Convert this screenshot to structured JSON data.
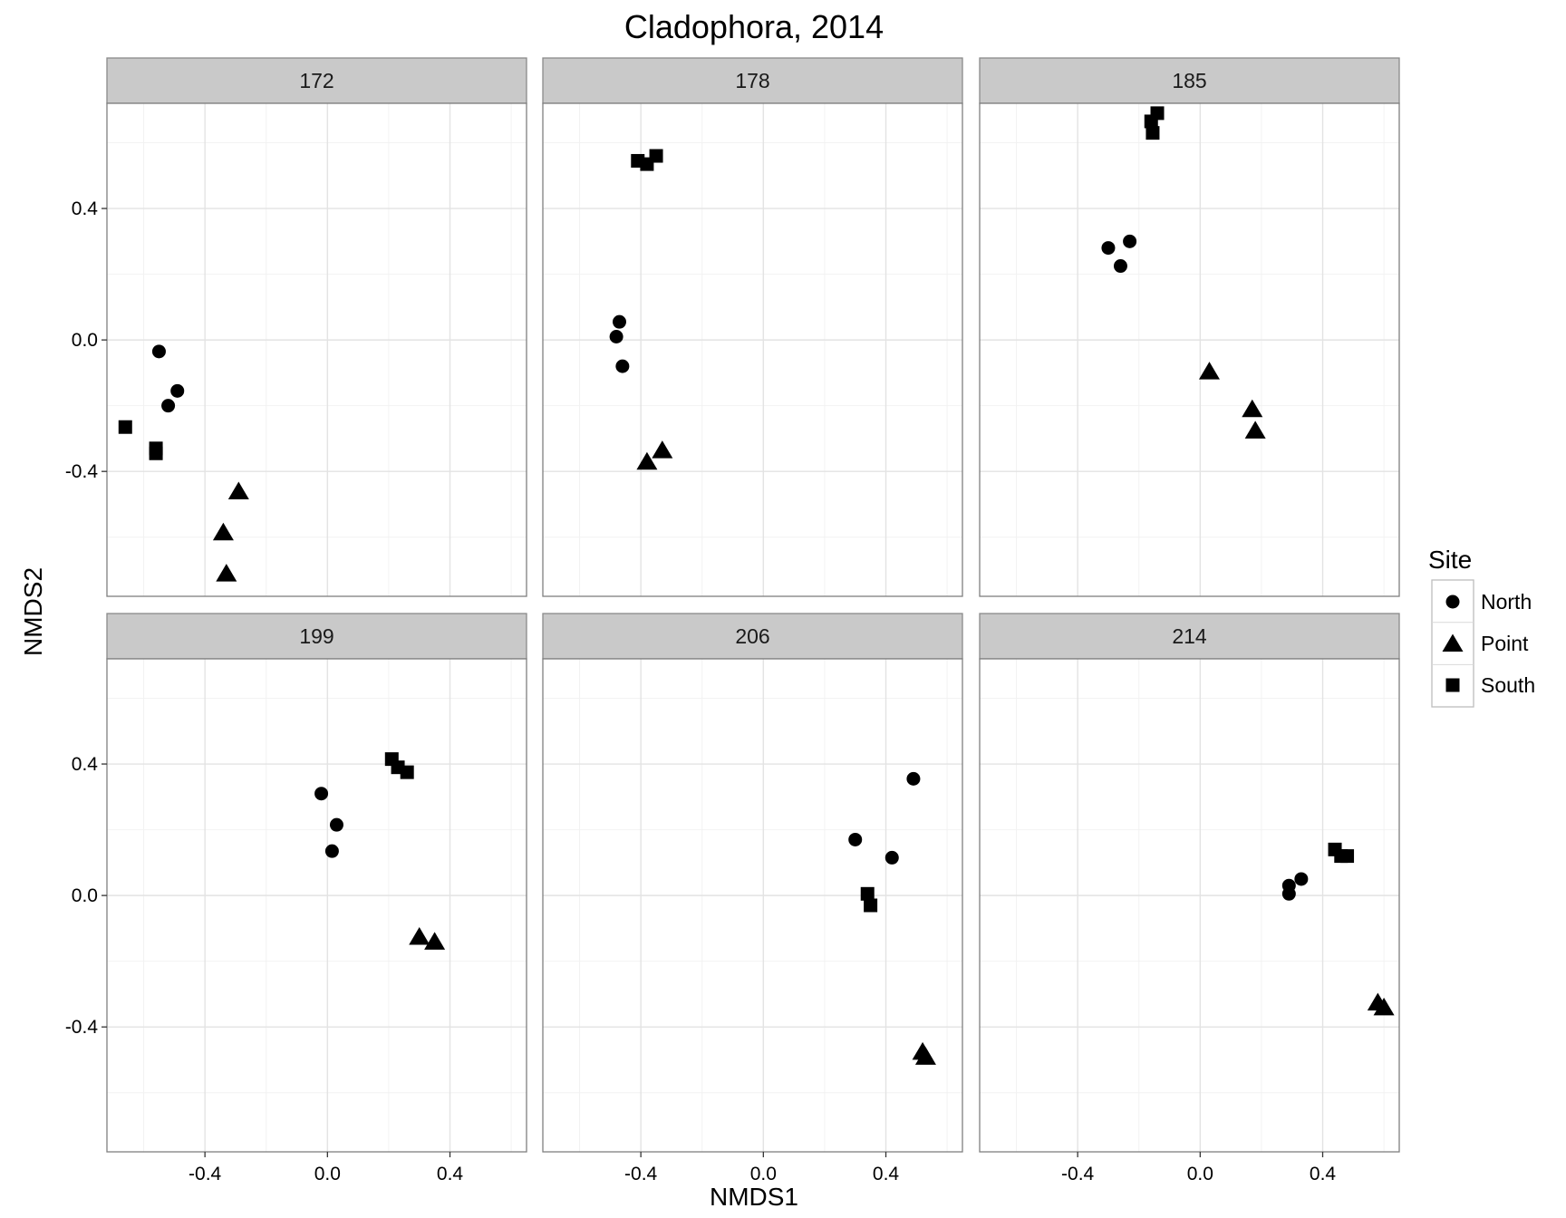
{
  "chart_data": {
    "type": "scatter",
    "title": "Cladophora, 2014",
    "xlabel": "NMDS1",
    "ylabel": "NMDS2",
    "xlim": [
      -0.72,
      0.65
    ],
    "ylim": [
      -0.78,
      0.72
    ],
    "xticks": [
      -0.4,
      0.0,
      0.4
    ],
    "xtick_labels": [
      "-0.4",
      "0.0",
      "0.4"
    ],
    "yticks": [
      0.4,
      0.0,
      -0.4
    ],
    "ytick_labels": [
      "0.4",
      "0.0",
      "-0.4"
    ],
    "grid": true,
    "legend": {
      "title": "Site",
      "position": "right",
      "entries": [
        {
          "name": "North",
          "shape": "circle"
        },
        {
          "name": "Point",
          "shape": "triangle"
        },
        {
          "name": "South",
          "shape": "square"
        }
      ]
    },
    "facets": [
      {
        "label": "172",
        "series": [
          {
            "name": "North",
            "points": [
              [
                -0.55,
                -0.035
              ],
              [
                -0.49,
                -0.155
              ],
              [
                -0.52,
                -0.2
              ]
            ]
          },
          {
            "name": "Point",
            "points": [
              [
                -0.29,
                -0.46
              ],
              [
                -0.34,
                -0.585
              ],
              [
                -0.33,
                -0.71
              ]
            ]
          },
          {
            "name": "South",
            "points": [
              [
                -0.66,
                -0.265
              ],
              [
                -0.56,
                -0.33
              ],
              [
                -0.56,
                -0.345
              ]
            ]
          }
        ]
      },
      {
        "label": "178",
        "series": [
          {
            "name": "North",
            "points": [
              [
                -0.47,
                0.055
              ],
              [
                -0.48,
                0.01
              ],
              [
                -0.46,
                -0.08
              ]
            ]
          },
          {
            "name": "Point",
            "points": [
              [
                -0.33,
                -0.335
              ],
              [
                -0.38,
                -0.37
              ]
            ]
          },
          {
            "name": "South",
            "points": [
              [
                -0.41,
                0.545
              ],
              [
                -0.38,
                0.535
              ],
              [
                -0.35,
                0.56
              ]
            ]
          }
        ]
      },
      {
        "label": "185",
        "series": [
          {
            "name": "North",
            "points": [
              [
                -0.23,
                0.3
              ],
              [
                -0.3,
                0.28
              ],
              [
                -0.26,
                0.225
              ]
            ]
          },
          {
            "name": "Point",
            "points": [
              [
                0.03,
                -0.095
              ],
              [
                0.17,
                -0.21
              ],
              [
                0.18,
                -0.275
              ]
            ]
          },
          {
            "name": "South",
            "points": [
              [
                -0.14,
                0.69
              ],
              [
                -0.16,
                0.665
              ],
              [
                -0.155,
                0.63
              ]
            ]
          }
        ]
      },
      {
        "label": "199",
        "series": [
          {
            "name": "North",
            "points": [
              [
                -0.02,
                0.31
              ],
              [
                0.03,
                0.215
              ],
              [
                0.015,
                0.135
              ]
            ]
          },
          {
            "name": "Point",
            "points": [
              [
                0.3,
                -0.125
              ],
              [
                0.35,
                -0.14
              ]
            ]
          },
          {
            "name": "South",
            "points": [
              [
                0.21,
                0.415
              ],
              [
                0.23,
                0.39
              ],
              [
                0.26,
                0.375
              ]
            ]
          }
        ]
      },
      {
        "label": "206",
        "series": [
          {
            "name": "North",
            "points": [
              [
                0.49,
                0.355
              ],
              [
                0.3,
                0.17
              ],
              [
                0.42,
                0.115
              ]
            ]
          },
          {
            "name": "Point",
            "points": [
              [
                0.52,
                -0.475
              ],
              [
                0.53,
                -0.49
              ]
            ]
          },
          {
            "name": "South",
            "points": [
              [
                0.34,
                0.005
              ],
              [
                0.35,
                -0.03
              ]
            ]
          }
        ]
      },
      {
        "label": "214",
        "series": [
          {
            "name": "North",
            "points": [
              [
                0.33,
                0.05
              ],
              [
                0.29,
                0.03
              ],
              [
                0.29,
                0.005
              ]
            ]
          },
          {
            "name": "Point",
            "points": [
              [
                0.58,
                -0.325
              ],
              [
                0.6,
                -0.34
              ]
            ]
          },
          {
            "name": "South",
            "points": [
              [
                0.44,
                0.14
              ],
              [
                0.46,
                0.12
              ],
              [
                0.48,
                0.12
              ]
            ]
          }
        ]
      }
    ]
  }
}
